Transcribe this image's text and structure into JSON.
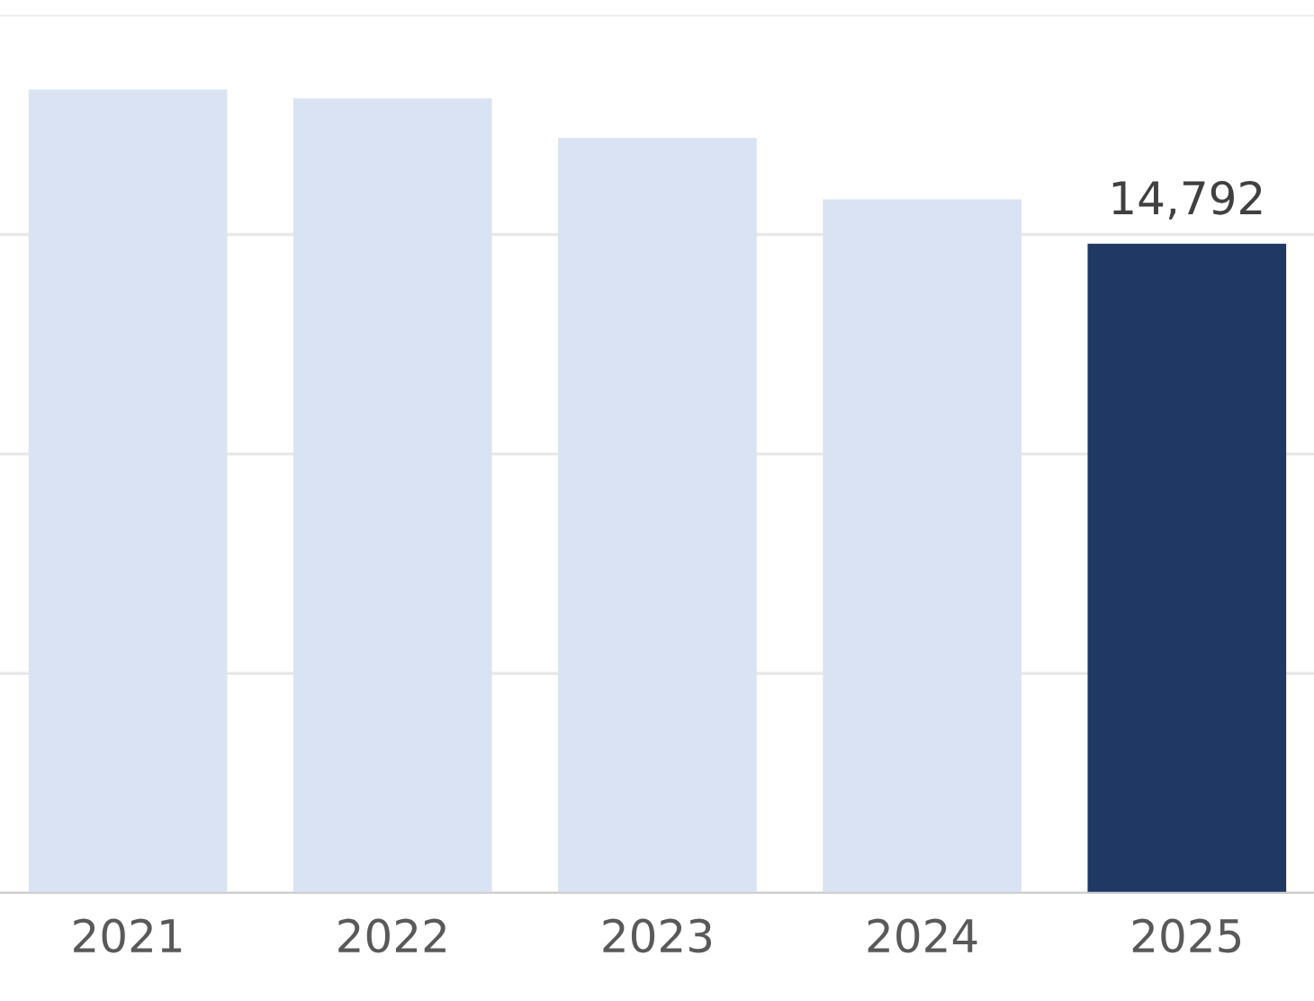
{
  "chart_data": {
    "type": "bar",
    "categories": [
      "2021",
      "2022",
      "2023",
      "2024",
      "2025"
    ],
    "values": [
      18300,
      18100,
      17200,
      15800,
      14792
    ],
    "colors": [
      "#dae3f3",
      "#dae3f3",
      "#dae3f3",
      "#dae3f3",
      "#203864"
    ],
    "value_labels": [
      null,
      null,
      null,
      null,
      "14,792"
    ],
    "ylim": [
      0,
      20000
    ],
    "tick_labels": "x",
    "grid": "y"
  }
}
